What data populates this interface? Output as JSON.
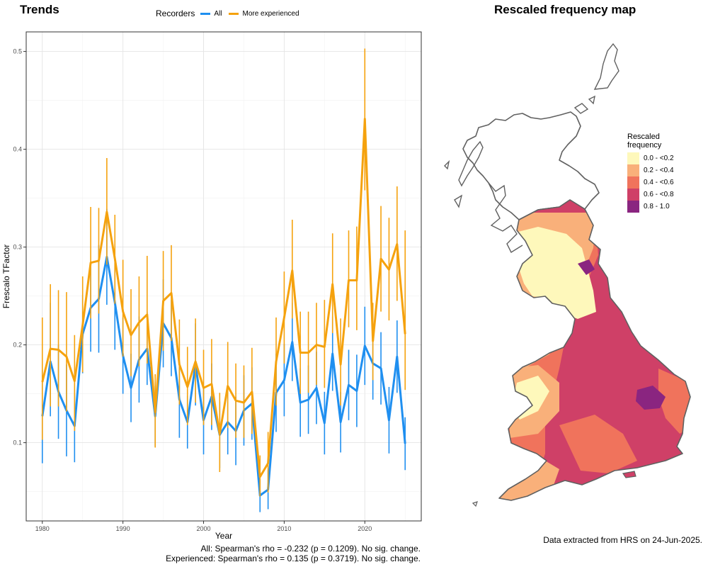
{
  "chart_data": [
    {
      "type": "line",
      "title": "Trends",
      "xlabel": "Year",
      "ylabel": "Frescalo TFactor",
      "xlim": [
        1978,
        2027
      ],
      "ylim": [
        0.02,
        0.52
      ],
      "x_ticks": [
        1980,
        1990,
        2000,
        2010,
        2020
      ],
      "y_ticks": [
        0.1,
        0.2,
        0.3,
        0.4,
        0.5
      ],
      "y_tick_labels": [
        "0.1",
        "0.2",
        "0.3",
        "0.4",
        "0.5"
      ],
      "grid": true,
      "legend": {
        "title": "Recorders",
        "placement": "top"
      },
      "x": [
        1980,
        1981,
        1982,
        1983,
        1984,
        1985,
        1986,
        1987,
        1988,
        1989,
        1990,
        1991,
        1992,
        1993,
        1994,
        1995,
        1996,
        1997,
        1998,
        1999,
        2000,
        2001,
        2002,
        2003,
        2004,
        2005,
        2006,
        2007,
        2008,
        2009,
        2010,
        2011,
        2012,
        2013,
        2014,
        2015,
        2016,
        2017,
        2018,
        2019,
        2020,
        2021,
        2022,
        2023,
        2024,
        2025
      ],
      "series": [
        {
          "name": "All",
          "color": "#1f8ff0",
          "values": [
            0.127,
            0.183,
            0.152,
            0.133,
            0.117,
            0.211,
            0.238,
            0.247,
            0.29,
            0.243,
            0.189,
            0.156,
            0.185,
            0.196,
            0.127,
            0.222,
            0.207,
            0.144,
            0.121,
            0.18,
            0.123,
            0.147,
            0.108,
            0.121,
            0.112,
            0.133,
            0.14,
            0.046,
            0.052,
            0.151,
            0.164,
            0.203,
            0.141,
            0.144,
            0.156,
            0.12,
            0.191,
            0.121,
            0.159,
            0.153,
            0.199,
            0.181,
            0.176,
            0.123,
            0.188,
            0.099
          ],
          "lower": [
            0.079,
            0.127,
            0.104,
            0.086,
            0.08,
            0.171,
            0.193,
            0.192,
            0.241,
            0.195,
            0.15,
            0.121,
            0.141,
            0.159,
            0.096,
            0.177,
            0.168,
            0.105,
            0.094,
            0.138,
            0.088,
            0.113,
            0.074,
            0.088,
            0.077,
            0.097,
            0.103,
            0.029,
            0.032,
            0.111,
            0.127,
            0.163,
            0.106,
            0.109,
            0.119,
            0.088,
            0.153,
            0.09,
            0.123,
            0.116,
            0.159,
            0.144,
            0.139,
            0.089,
            0.151,
            0.072
          ],
          "upper": [
            0.174,
            0.243,
            0.2,
            0.18,
            0.154,
            0.251,
            0.285,
            0.302,
            0.339,
            0.291,
            0.228,
            0.191,
            0.229,
            0.234,
            0.158,
            0.267,
            0.246,
            0.183,
            0.148,
            0.222,
            0.158,
            0.181,
            0.142,
            0.154,
            0.147,
            0.169,
            0.177,
            0.063,
            0.072,
            0.191,
            0.201,
            0.243,
            0.176,
            0.179,
            0.193,
            0.152,
            0.229,
            0.152,
            0.195,
            0.19,
            0.239,
            0.218,
            0.213,
            0.157,
            0.225,
            0.126
          ]
        },
        {
          "name": "More experienced",
          "color": "#f5a20e",
          "values": [
            0.162,
            0.196,
            0.195,
            0.188,
            0.163,
            0.22,
            0.284,
            0.286,
            0.336,
            0.288,
            0.234,
            0.21,
            0.223,
            0.231,
            0.131,
            0.245,
            0.253,
            0.18,
            0.157,
            0.183,
            0.156,
            0.16,
            0.109,
            0.158,
            0.143,
            0.141,
            0.152,
            0.065,
            0.079,
            0.183,
            0.228,
            0.276,
            0.192,
            0.192,
            0.2,
            0.198,
            0.262,
            0.18,
            0.266,
            0.266,
            0.431,
            0.204,
            0.288,
            0.277,
            0.303,
            0.211
          ],
          "lower": [
            0.103,
            0.137,
            0.137,
            0.132,
            0.112,
            0.172,
            0.227,
            0.232,
            0.282,
            0.242,
            0.188,
            0.168,
            0.178,
            0.181,
            0.095,
            0.194,
            0.204,
            0.139,
            0.118,
            0.141,
            0.118,
            0.118,
            0.07,
            0.115,
            0.105,
            0.105,
            0.109,
            0.045,
            0.049,
            0.138,
            0.181,
            0.227,
            0.15,
            0.151,
            0.159,
            0.156,
            0.212,
            0.138,
            0.218,
            0.215,
            0.358,
            0.164,
            0.234,
            0.225,
            0.245,
            0.154
          ],
          "upper": [
            0.228,
            0.262,
            0.256,
            0.254,
            0.21,
            0.27,
            0.341,
            0.34,
            0.391,
            0.333,
            0.287,
            0.257,
            0.27,
            0.291,
            0.17,
            0.296,
            0.302,
            0.226,
            0.198,
            0.227,
            0.195,
            0.206,
            0.151,
            0.203,
            0.181,
            0.179,
            0.197,
            0.087,
            0.111,
            0.228,
            0.275,
            0.328,
            0.234,
            0.234,
            0.243,
            0.246,
            0.314,
            0.227,
            0.317,
            0.321,
            0.503,
            0.243,
            0.342,
            0.33,
            0.362,
            0.317
          ]
        }
      ],
      "annotations": [
        "All: Spearman's rho = -0.232 (p = 0.1209). No sig. change.",
        "Experienced: Spearman's rho = 0.135 (p = 0.3719). No sig. change."
      ]
    },
    {
      "type": "heatmap",
      "title": "Rescaled frequency map",
      "legend": {
        "title_lines": [
          "Rescaled",
          "frequency"
        ],
        "placement": "right",
        "bins": [
          {
            "label": "0.0 - <0.2",
            "color": "#fef8bb"
          },
          {
            "label": "0.2 - <0.4",
            "color": "#f9b07a"
          },
          {
            "label": "0.4 - <0.6",
            "color": "#f0735c"
          },
          {
            "label": "0.6 - <0.8",
            "color": "#cf4067"
          },
          {
            "label": "0.8 - 1.0",
            "color": "#8a2580"
          }
        ]
      },
      "outline_color": "#606060"
    }
  ],
  "footnote": "Data extracted from HRS on 24-Jun-2025."
}
